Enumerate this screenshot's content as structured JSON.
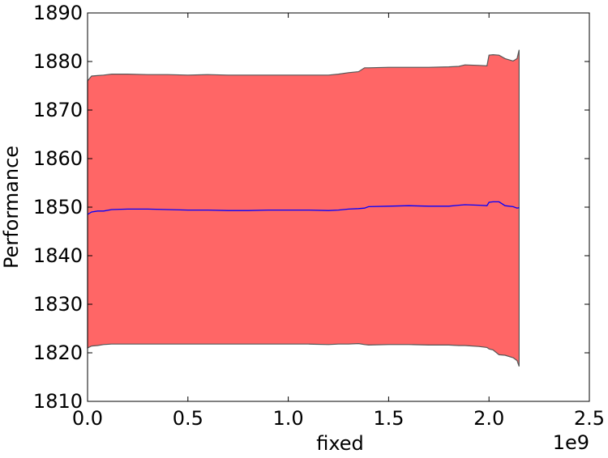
{
  "chart_data": {
    "type": "area",
    "title": "",
    "xlabel": "fixed",
    "ylabel": "Performance",
    "x_offset_text": "1e9",
    "xlim": [
      0,
      2500000000
    ],
    "ylim": [
      1810,
      1890
    ],
    "x_ticks": [
      0,
      500000000,
      1000000000,
      1500000000,
      2000000000,
      2500000000
    ],
    "x_tick_labels": [
      "0.0",
      "0.5",
      "1.0",
      "1.5",
      "2.0",
      "2.5"
    ],
    "y_ticks": [
      1810,
      1820,
      1830,
      1840,
      1850,
      1860,
      1870,
      1880,
      1890
    ],
    "y_tick_labels": [
      "1810",
      "1820",
      "1830",
      "1840",
      "1850",
      "1860",
      "1870",
      "1880",
      "1890"
    ],
    "grid": false,
    "x": [
      0,
      20000000,
      50000000,
      80000000,
      120000000,
      200000000,
      300000000,
      400000000,
      500000000,
      600000000,
      700000000,
      800000000,
      900000000,
      1000000000,
      1100000000,
      1200000000,
      1250000000,
      1300000000,
      1350000000,
      1380000000,
      1400000000,
      1500000000,
      1600000000,
      1700000000,
      1800000000,
      1850000000,
      1880000000,
      1950000000,
      1990000000,
      2000000000,
      2020000000,
      2050000000,
      2080000000,
      2120000000,
      2140000000,
      2150000000
    ],
    "series": [
      {
        "values": [
          1848.5,
          1849.0,
          1849.2,
          1849.2,
          1849.5,
          1849.6,
          1849.6,
          1849.5,
          1849.4,
          1849.4,
          1849.3,
          1849.3,
          1849.4,
          1849.4,
          1849.4,
          1849.3,
          1849.4,
          1849.6,
          1849.7,
          1849.8,
          1850.1,
          1850.2,
          1850.3,
          1850.2,
          1850.2,
          1850.4,
          1850.5,
          1850.4,
          1850.3,
          1851.0,
          1851.1,
          1851.1,
          1850.3,
          1850.1,
          1849.8,
          1849.9
        ],
        "lower": [
          1821.0,
          1821.4,
          1821.5,
          1821.7,
          1821.8,
          1821.8,
          1821.8,
          1821.8,
          1821.8,
          1821.8,
          1821.8,
          1821.8,
          1821.8,
          1821.8,
          1821.8,
          1821.7,
          1821.8,
          1821.8,
          1821.9,
          1821.7,
          1821.6,
          1821.7,
          1821.7,
          1821.6,
          1821.6,
          1821.5,
          1821.5,
          1821.3,
          1821.1,
          1820.8,
          1820.6,
          1819.6,
          1819.5,
          1819.0,
          1818.4,
          1817.2
        ],
        "upper": [
          1876.0,
          1877.0,
          1877.1,
          1877.2,
          1877.4,
          1877.4,
          1877.3,
          1877.3,
          1877.2,
          1877.3,
          1877.2,
          1877.2,
          1877.2,
          1877.2,
          1877.2,
          1877.2,
          1877.4,
          1877.7,
          1877.9,
          1878.7,
          1878.7,
          1878.8,
          1878.8,
          1878.8,
          1878.9,
          1879.0,
          1879.3,
          1879.2,
          1879.1,
          1881.3,
          1881.4,
          1881.3,
          1880.6,
          1880.1,
          1880.6,
          1882.4
        ]
      }
    ],
    "colors": {
      "band_fill": "#ff6666",
      "band_edge": "#555555",
      "mean_line": "#0000ff",
      "axes": "#000000",
      "background": "#ffffff"
    }
  }
}
